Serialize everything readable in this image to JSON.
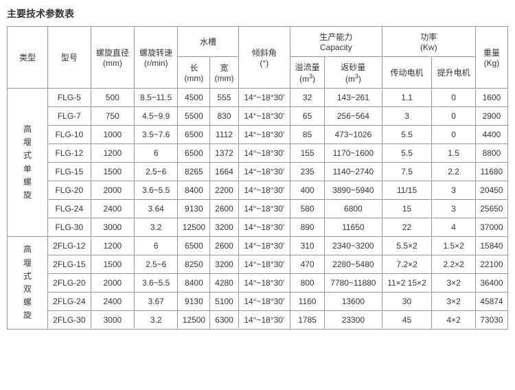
{
  "title": "主要技术参数表",
  "headers": {
    "type": "类型",
    "model": "型号",
    "spiral_diameter": "螺旋直径",
    "spiral_diameter_unit": "(mm)",
    "spiral_speed": "螺旋转速",
    "spiral_speed_unit": "(r/min)",
    "tank": "水槽",
    "length": "长",
    "length_unit": "(mm)",
    "width": "宽",
    "width_unit": "(mm)",
    "tilt_angle": "倾斜角",
    "tilt_angle_unit": "(°)",
    "capacity": "生产能力",
    "capacity_en": "Capacity",
    "overflow": "溢流量",
    "overflow_unit": "(m3)",
    "return_sand": "返砂量",
    "return_sand_unit": "(m3)",
    "power": "功率",
    "power_unit": "(Kw)",
    "drive_motor": "传动电机",
    "lift_motor": "提升电机",
    "weight": "重量",
    "weight_unit": "(Kg)"
  },
  "group1": {
    "label": "高堰式单螺旋",
    "rows": [
      {
        "model": "FLG-5",
        "dia": "500",
        "speed": "8.5~11.5",
        "len": "4500",
        "wid": "555",
        "angle": "14°~18°30'",
        "over": "32",
        "ret": "143~261",
        "drive": "1.1",
        "lift": "0",
        "wt": "1600"
      },
      {
        "model": "FLG-7",
        "dia": "750",
        "speed": "4.5~9.9",
        "len": "5500",
        "wid": "830",
        "angle": "14°~18°30'",
        "over": "65",
        "ret": "256~564",
        "drive": "3",
        "lift": "0",
        "wt": "2900"
      },
      {
        "model": "FLG-10",
        "dia": "1000",
        "speed": "3.5~7.6",
        "len": "6500",
        "wid": "1112",
        "angle": "14°~18°30'",
        "over": "85",
        "ret": "473~1026",
        "drive": "5.5",
        "lift": "0",
        "wt": "4400"
      },
      {
        "model": "FLG-12",
        "dia": "1200",
        "speed": "6",
        "len": "6500",
        "wid": "1372",
        "angle": "14°~18°30'",
        "over": "155",
        "ret": "1170~1600",
        "drive": "5.5",
        "lift": "1.5",
        "wt": "8800"
      },
      {
        "model": "FLG-15",
        "dia": "1500",
        "speed": "2.5~6",
        "len": "8265",
        "wid": "1664",
        "angle": "14°~18°30'",
        "over": "235",
        "ret": "1140~2740",
        "drive": "7.5",
        "lift": "2.2",
        "wt": "11680"
      },
      {
        "model": "FLG-20",
        "dia": "2000",
        "speed": "3.6~5.5",
        "len": "8400",
        "wid": "2200",
        "angle": "14°~18°30'",
        "over": "400",
        "ret": "3890~5940",
        "drive": "11/15",
        "lift": "3",
        "wt": "20450"
      },
      {
        "model": "FLG-24",
        "dia": "2400",
        "speed": "3.64",
        "len": "9130",
        "wid": "2600",
        "angle": "14°~18°30'",
        "over": "580",
        "ret": "6800",
        "drive": "15",
        "lift": "3",
        "wt": "25650"
      },
      {
        "model": "FLG-30",
        "dia": "3000",
        "speed": "3.2",
        "len": "12500",
        "wid": "3200",
        "angle": "14°~18°30'",
        "over": "890",
        "ret": "11650",
        "drive": "22",
        "lift": "4",
        "wt": "37000"
      }
    ]
  },
  "group2": {
    "label": "高堰式双螺旋",
    "rows": [
      {
        "model": "2FLG-12",
        "dia": "1200",
        "speed": "6",
        "len": "6500",
        "wid": "2600",
        "angle": "14°~18°30'",
        "over": "310",
        "ret": "2340~3200",
        "drive": "5.5×2",
        "lift": "1.5×2",
        "wt": "15840"
      },
      {
        "model": "2FLG-15",
        "dia": "1500",
        "speed": "2.5~6",
        "len": "8250",
        "wid": "3200",
        "angle": "14°~18°30'",
        "over": "470",
        "ret": "2280~5480",
        "drive": "7.2×2",
        "lift": "2.2×2",
        "wt": "22100"
      },
      {
        "model": "2FLG-20",
        "dia": "2000",
        "speed": "3.6~5.5",
        "len": "8400",
        "wid": "4280",
        "angle": "14°~18°30'",
        "over": "800",
        "ret": "7780~11880",
        "drive": "11×2 15×2",
        "lift": "3×2",
        "wt": "36400"
      },
      {
        "model": "2FLG-24",
        "dia": "2400",
        "speed": "3.67",
        "len": "9130",
        "wid": "5100",
        "angle": "14°~18°30'",
        "over": "1160",
        "ret": "13600",
        "drive": "30",
        "lift": "3×2",
        "wt": "45874"
      },
      {
        "model": "2FLG-30",
        "dia": "3000",
        "speed": "3.2",
        "len": "12500",
        "wid": "6300",
        "angle": "14°~18°30'",
        "over": "1785",
        "ret": "23300",
        "drive": "45",
        "lift": "4×2",
        "wt": "73030"
      }
    ]
  }
}
